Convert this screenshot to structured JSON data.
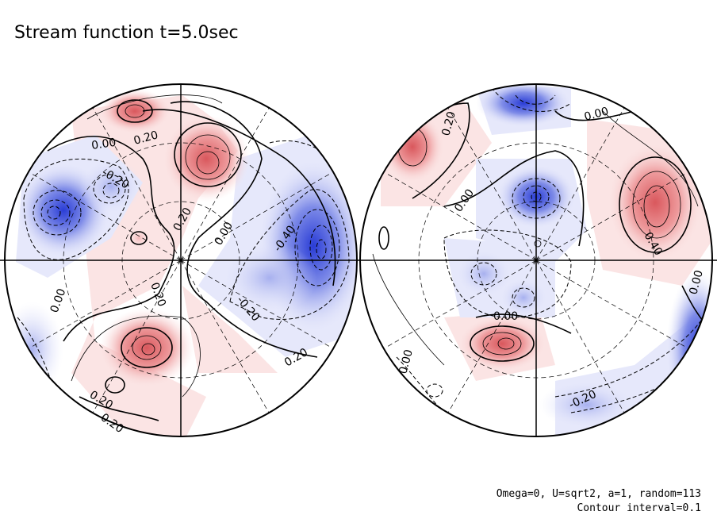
{
  "figure": {
    "title": "Stream function t=5.0sec",
    "footnote_line1": "Omega=0, U=sqrt2, a=1, random=113",
    "footnote_line2": "Contour interval=0.1",
    "contour_interval": 0.1,
    "colors": {
      "positive_strong": "#e8898c",
      "positive_weak": "#fbe4e4",
      "negative_strong": "#3346d8",
      "negative_weak": "#e6e8fb",
      "line": "#000000"
    }
  },
  "left_hemisphere": {
    "labels": [
      {
        "text": "0.00"
      },
      {
        "text": "0.20"
      },
      {
        "text": "-0.20"
      },
      {
        "text": "0.20"
      },
      {
        "text": "0.00"
      },
      {
        "text": "-0.40"
      },
      {
        "text": "0.00"
      },
      {
        "text": "0.20"
      },
      {
        "text": "-0.20"
      },
      {
        "text": "0.20"
      },
      {
        "text": "0.20"
      },
      {
        "text": "0.20"
      }
    ]
  },
  "right_hemisphere": {
    "labels": [
      {
        "text": "0.20"
      },
      {
        "text": "0.00"
      },
      {
        "text": "0.00"
      },
      {
        "text": "0.40"
      },
      {
        "text": "0.00"
      },
      {
        "text": "0.00"
      },
      {
        "text": "0.00"
      },
      {
        "text": "-0.20"
      }
    ]
  }
}
